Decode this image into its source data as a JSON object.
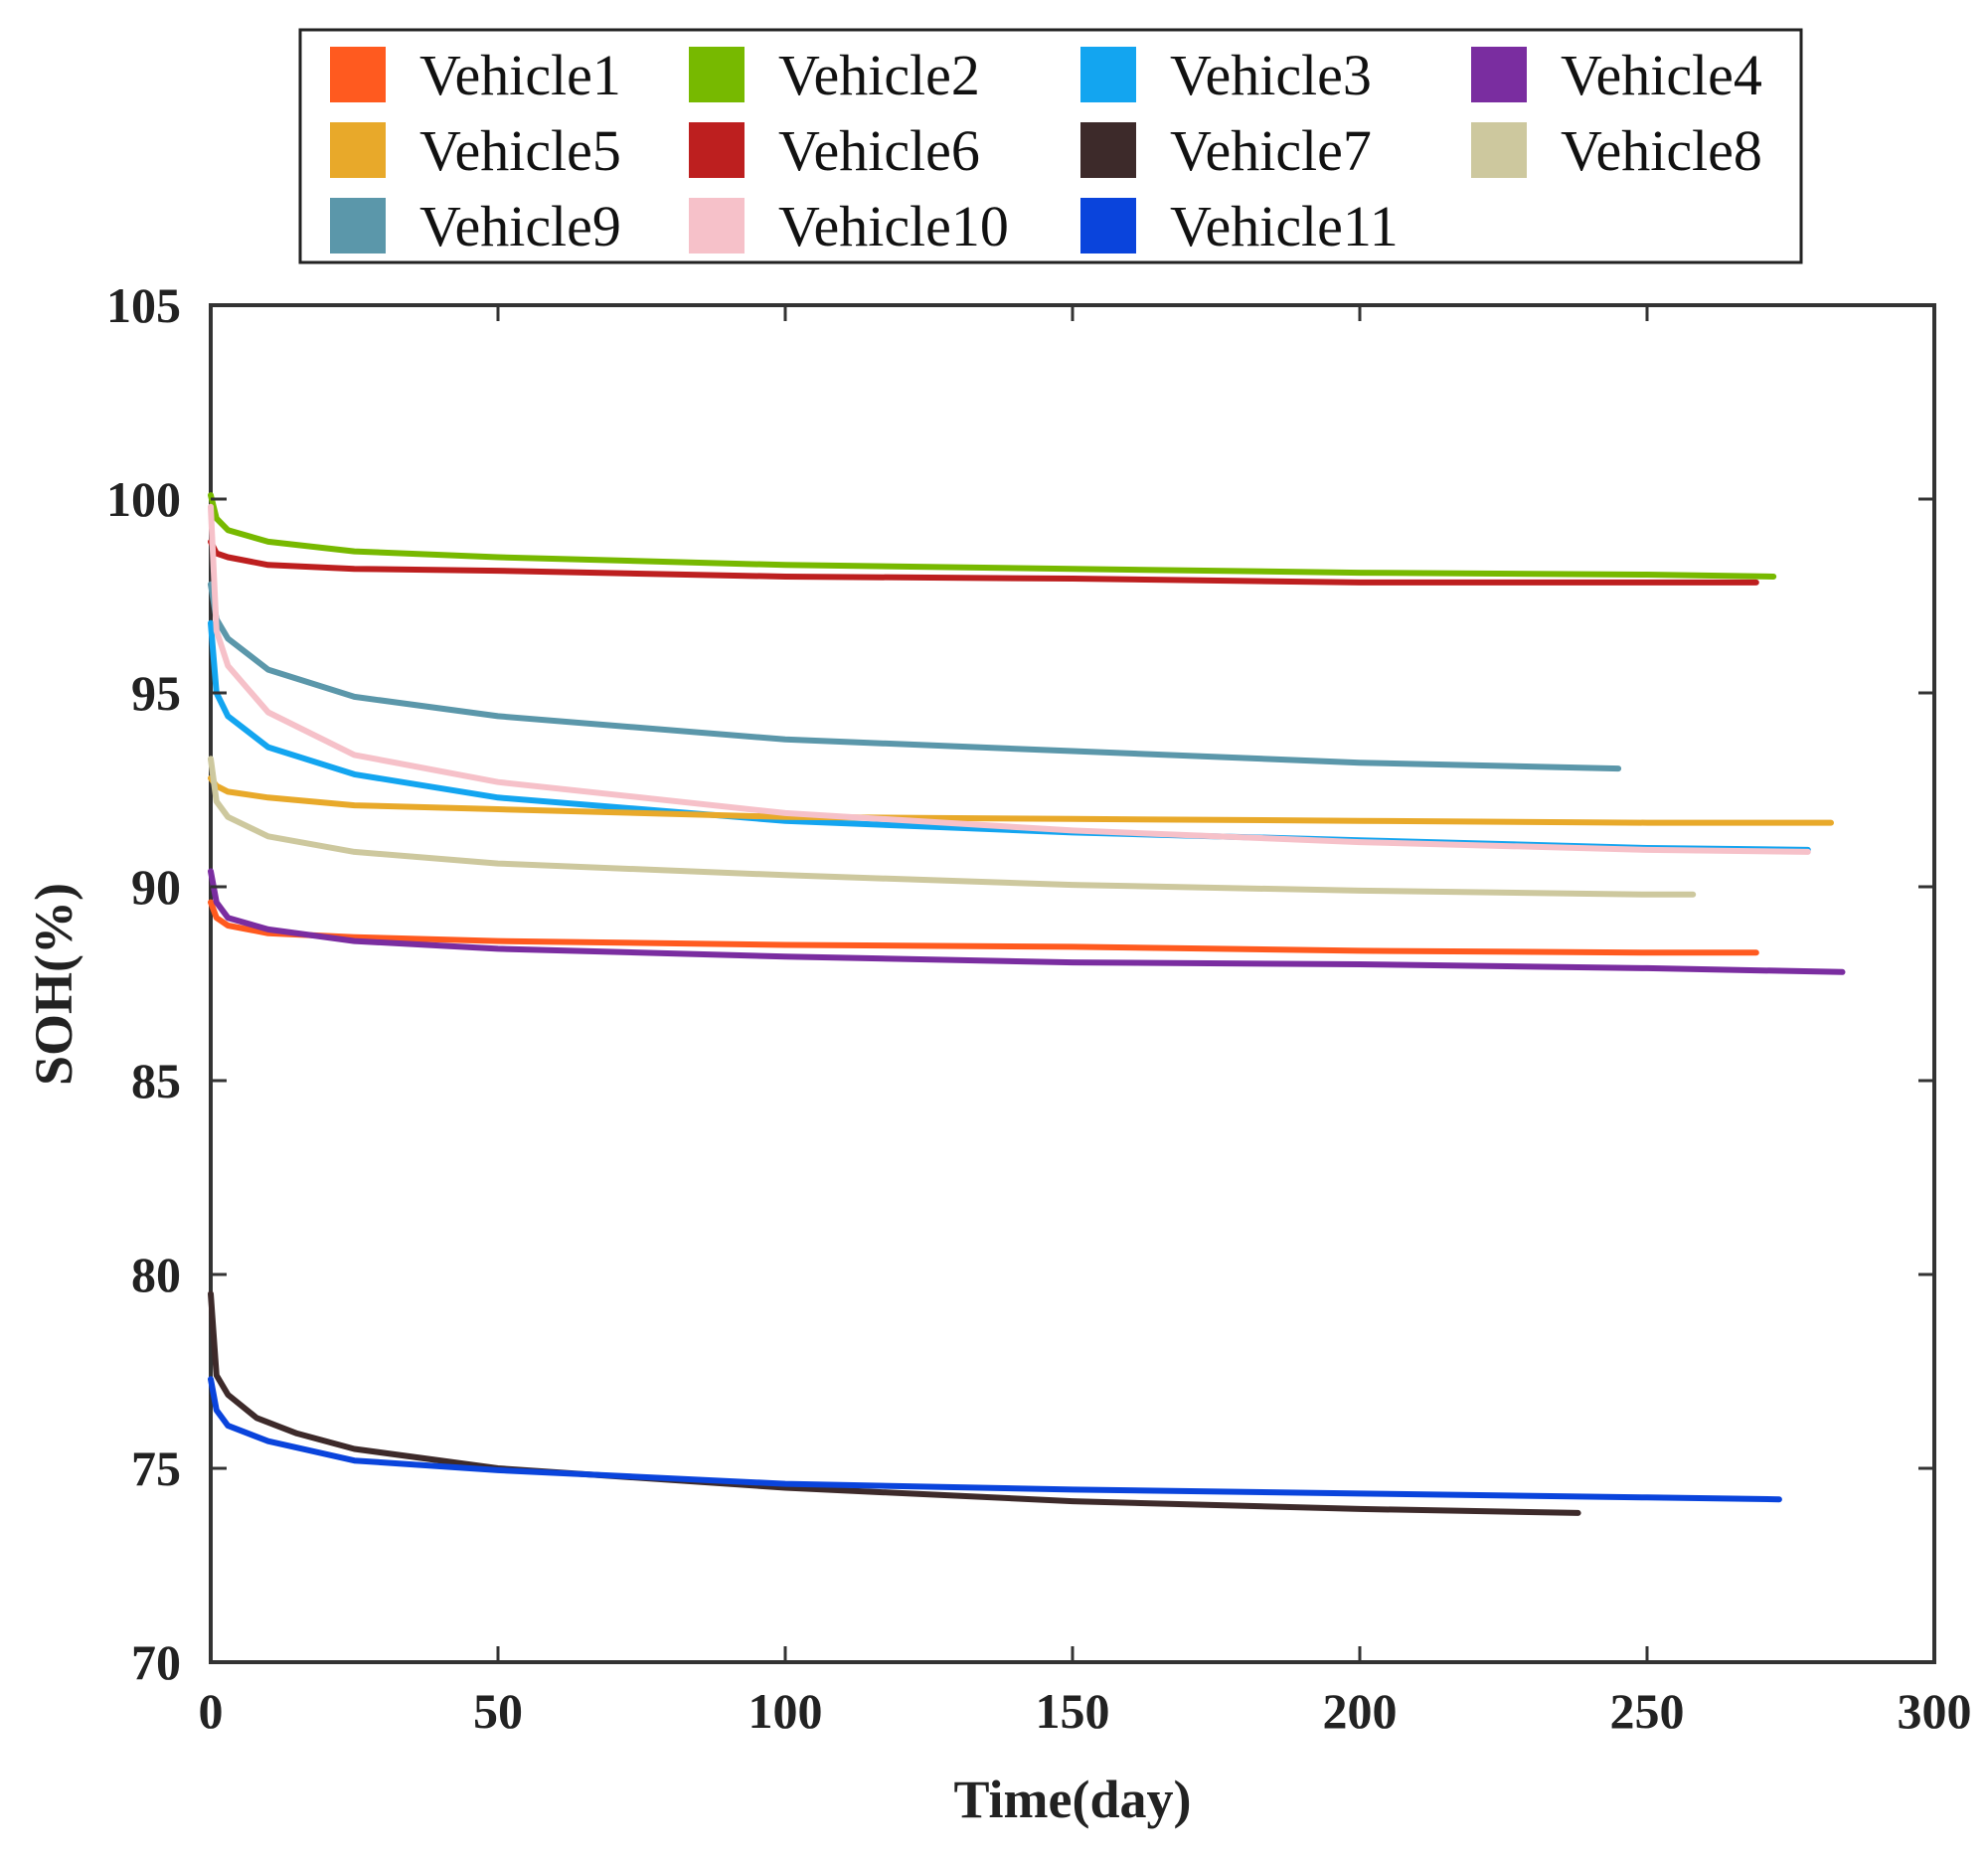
{
  "chart_data": {
    "type": "line",
    "title": "",
    "xlabel": "Time(day)",
    "ylabel": "SOH(%)",
    "xlim": [
      0,
      300
    ],
    "ylim": [
      70,
      105
    ],
    "xticks": [
      0,
      50,
      100,
      150,
      200,
      250,
      300
    ],
    "yticks": [
      70,
      75,
      80,
      85,
      90,
      95,
      100,
      105
    ],
    "grid": false,
    "legend_position": "top",
    "series": [
      {
        "name": "Vehicle1",
        "color": "#ff5a1f",
        "x": [
          0,
          1,
          3,
          10,
          25,
          50,
          100,
          150,
          200,
          250,
          269
        ],
        "y": [
          89.6,
          89.2,
          89.0,
          88.8,
          88.7,
          88.6,
          88.5,
          88.45,
          88.35,
          88.3,
          88.3
        ]
      },
      {
        "name": "Vehicle2",
        "color": "#77b900",
        "x": [
          0,
          1,
          3,
          10,
          25,
          50,
          100,
          150,
          200,
          250,
          272
        ],
        "y": [
          100.1,
          99.5,
          99.2,
          98.9,
          98.65,
          98.5,
          98.3,
          98.2,
          98.1,
          98.05,
          98.0
        ]
      },
      {
        "name": "Vehicle3",
        "color": "#13a5f0",
        "x": [
          0,
          1,
          3,
          10,
          25,
          50,
          100,
          150,
          200,
          250,
          278
        ],
        "y": [
          96.8,
          95.0,
          94.4,
          93.6,
          92.9,
          92.3,
          91.7,
          91.4,
          91.2,
          91.0,
          90.95
        ]
      },
      {
        "name": "Vehicle4",
        "color": "#7a2da0",
        "x": [
          0,
          1,
          3,
          10,
          25,
          50,
          100,
          150,
          200,
          250,
          284
        ],
        "y": [
          90.4,
          89.6,
          89.2,
          88.9,
          88.6,
          88.4,
          88.2,
          88.05,
          88.0,
          87.9,
          87.8
        ]
      },
      {
        "name": "Vehicle5",
        "color": "#e8a92a",
        "x": [
          0,
          1,
          3,
          10,
          25,
          50,
          100,
          150,
          200,
          250,
          282
        ],
        "y": [
          92.8,
          92.6,
          92.45,
          92.3,
          92.1,
          92.0,
          91.8,
          91.75,
          91.7,
          91.65,
          91.65
        ]
      },
      {
        "name": "Vehicle6",
        "color": "#bd1f1f",
        "x": [
          0,
          1,
          3,
          10,
          25,
          50,
          100,
          150,
          200,
          250,
          269
        ],
        "y": [
          98.9,
          98.6,
          98.5,
          98.3,
          98.2,
          98.15,
          98.0,
          97.95,
          97.85,
          97.85,
          97.85
        ]
      },
      {
        "name": "Vehicle7",
        "color": "#3d2a2a",
        "x": [
          0,
          1,
          3,
          8,
          15,
          25,
          50,
          100,
          150,
          200,
          238
        ],
        "y": [
          79.5,
          77.4,
          76.9,
          76.3,
          75.9,
          75.5,
          75.0,
          74.5,
          74.15,
          73.95,
          73.85
        ]
      },
      {
        "name": "Vehicle8",
        "color": "#cdc89e",
        "x": [
          0,
          1,
          3,
          10,
          25,
          50,
          100,
          150,
          200,
          250,
          258
        ],
        "y": [
          93.3,
          92.2,
          91.8,
          91.3,
          90.9,
          90.6,
          90.3,
          90.05,
          89.9,
          89.8,
          89.8
        ]
      },
      {
        "name": "Vehicle9",
        "color": "#5b97aa",
        "x": [
          0,
          1,
          3,
          10,
          25,
          50,
          100,
          150,
          200,
          245
        ],
        "y": [
          97.8,
          96.9,
          96.4,
          95.6,
          94.9,
          94.4,
          93.8,
          93.5,
          93.2,
          93.05
        ]
      },
      {
        "name": "Vehicle10",
        "color": "#f6c1c9",
        "x": [
          0,
          1,
          3,
          10,
          25,
          50,
          100,
          150,
          200,
          250,
          278
        ],
        "y": [
          99.8,
          96.6,
          95.7,
          94.5,
          93.4,
          92.7,
          91.9,
          91.45,
          91.15,
          90.95,
          90.9
        ]
      },
      {
        "name": "Vehicle11",
        "color": "#0a44dc",
        "x": [
          0,
          1,
          3,
          10,
          25,
          50,
          100,
          150,
          200,
          250,
          273
        ],
        "y": [
          77.3,
          76.5,
          76.1,
          75.7,
          75.2,
          74.95,
          74.6,
          74.45,
          74.35,
          74.25,
          74.2
        ]
      }
    ]
  }
}
